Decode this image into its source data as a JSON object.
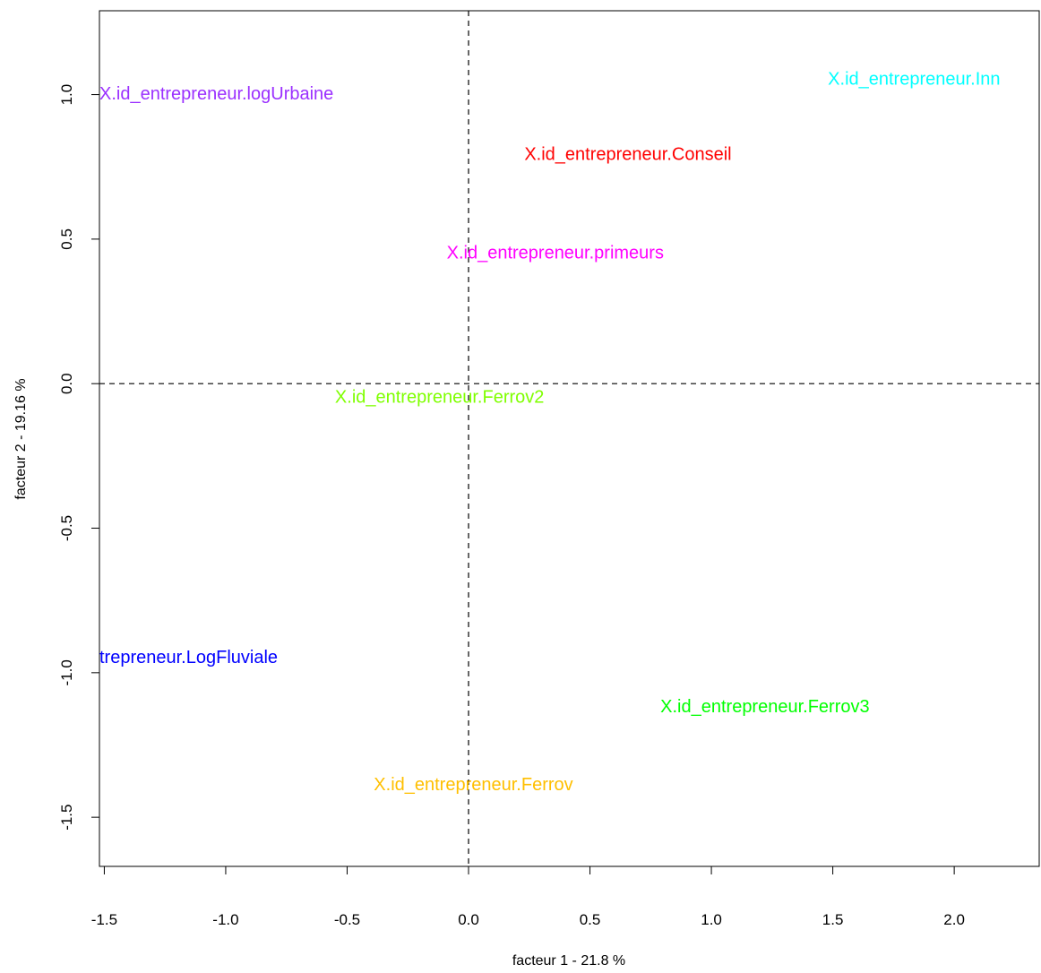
{
  "chart_data": {
    "type": "scatter",
    "title": "",
    "xlabel": "facteur  1  - 21.8 %",
    "ylabel": "facteur  2  - 19.16 %",
    "xlim": [
      -1.52,
      2.35
    ],
    "ylim": [
      -1.67,
      1.29
    ],
    "x_ticks": [
      "-1.5",
      "-1.0",
      "-0.5",
      "0.0",
      "0.5",
      "1.0",
      "1.5",
      "2.0"
    ],
    "y_ticks": [
      "-1.5",
      "-1.0",
      "-0.5",
      "0.0",
      "0.5",
      "1.0"
    ],
    "grid": false,
    "reference_lines": {
      "x": 0,
      "y": 0,
      "style": "dashed"
    },
    "points": [
      {
        "label": "X.id_entrepreneur.logUrbaine",
        "x": -1.52,
        "y": 1.0,
        "color": "#9b30ff"
      },
      {
        "label": "X.id_entrepreneur.Inn",
        "x": 1.48,
        "y": 1.05,
        "color": "#00ffff"
      },
      {
        "label": "X.id_entrepreneur.Conseil",
        "x": 0.23,
        "y": 0.79,
        "color": "#ff0000"
      },
      {
        "label": "X.id_entrepreneur.primeurs",
        "x": -0.09,
        "y": 0.45,
        "color": "#ff00ff"
      },
      {
        "label": "X.id_entrepreneur.Ferrov2",
        "x": -0.55,
        "y": -0.05,
        "color": "#7fff00"
      },
      {
        "label": "trepreneur.LogFluviale",
        "x": -1.52,
        "y": -0.95,
        "color": "#0000ff"
      },
      {
        "label": "X.id_entrepreneur.Ferrov3",
        "x": 0.79,
        "y": -1.12,
        "color": "#00ff00"
      },
      {
        "label": "X.id_entrepreneur.Ferrov",
        "x": -0.39,
        "y": -1.39,
        "color": "#ffbf00"
      }
    ]
  }
}
